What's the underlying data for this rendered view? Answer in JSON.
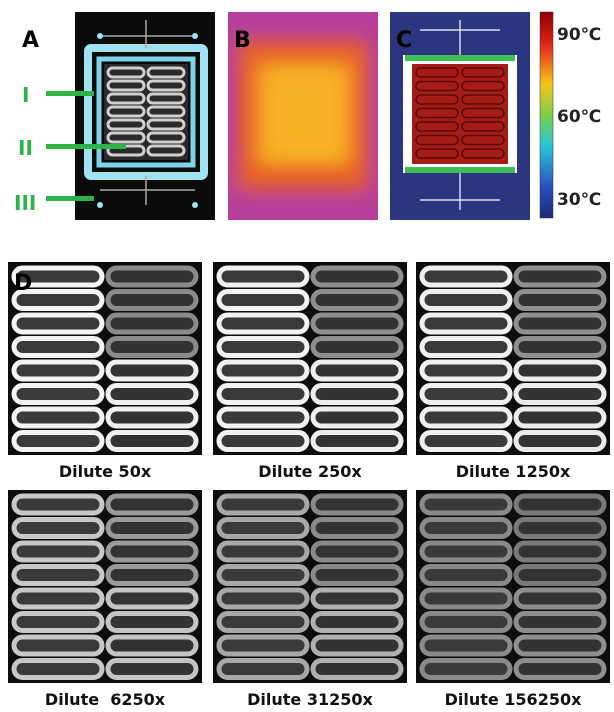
{
  "panel_a": {
    "label": "A",
    "markers": [
      "I",
      "II",
      "III"
    ]
  },
  "panel_b": {
    "label": "B"
  },
  "panel_c": {
    "label": "C",
    "colorbar_labels": [
      "90℃",
      "60℃",
      "30℃"
    ]
  },
  "panel_d": {
    "label": "D",
    "captions": [
      "Dilute 50x",
      "Dilute 250x",
      "Dilute 1250x",
      "Dilute  6250x",
      "Dilute 31250x",
      "Dilute 156250x"
    ]
  }
}
